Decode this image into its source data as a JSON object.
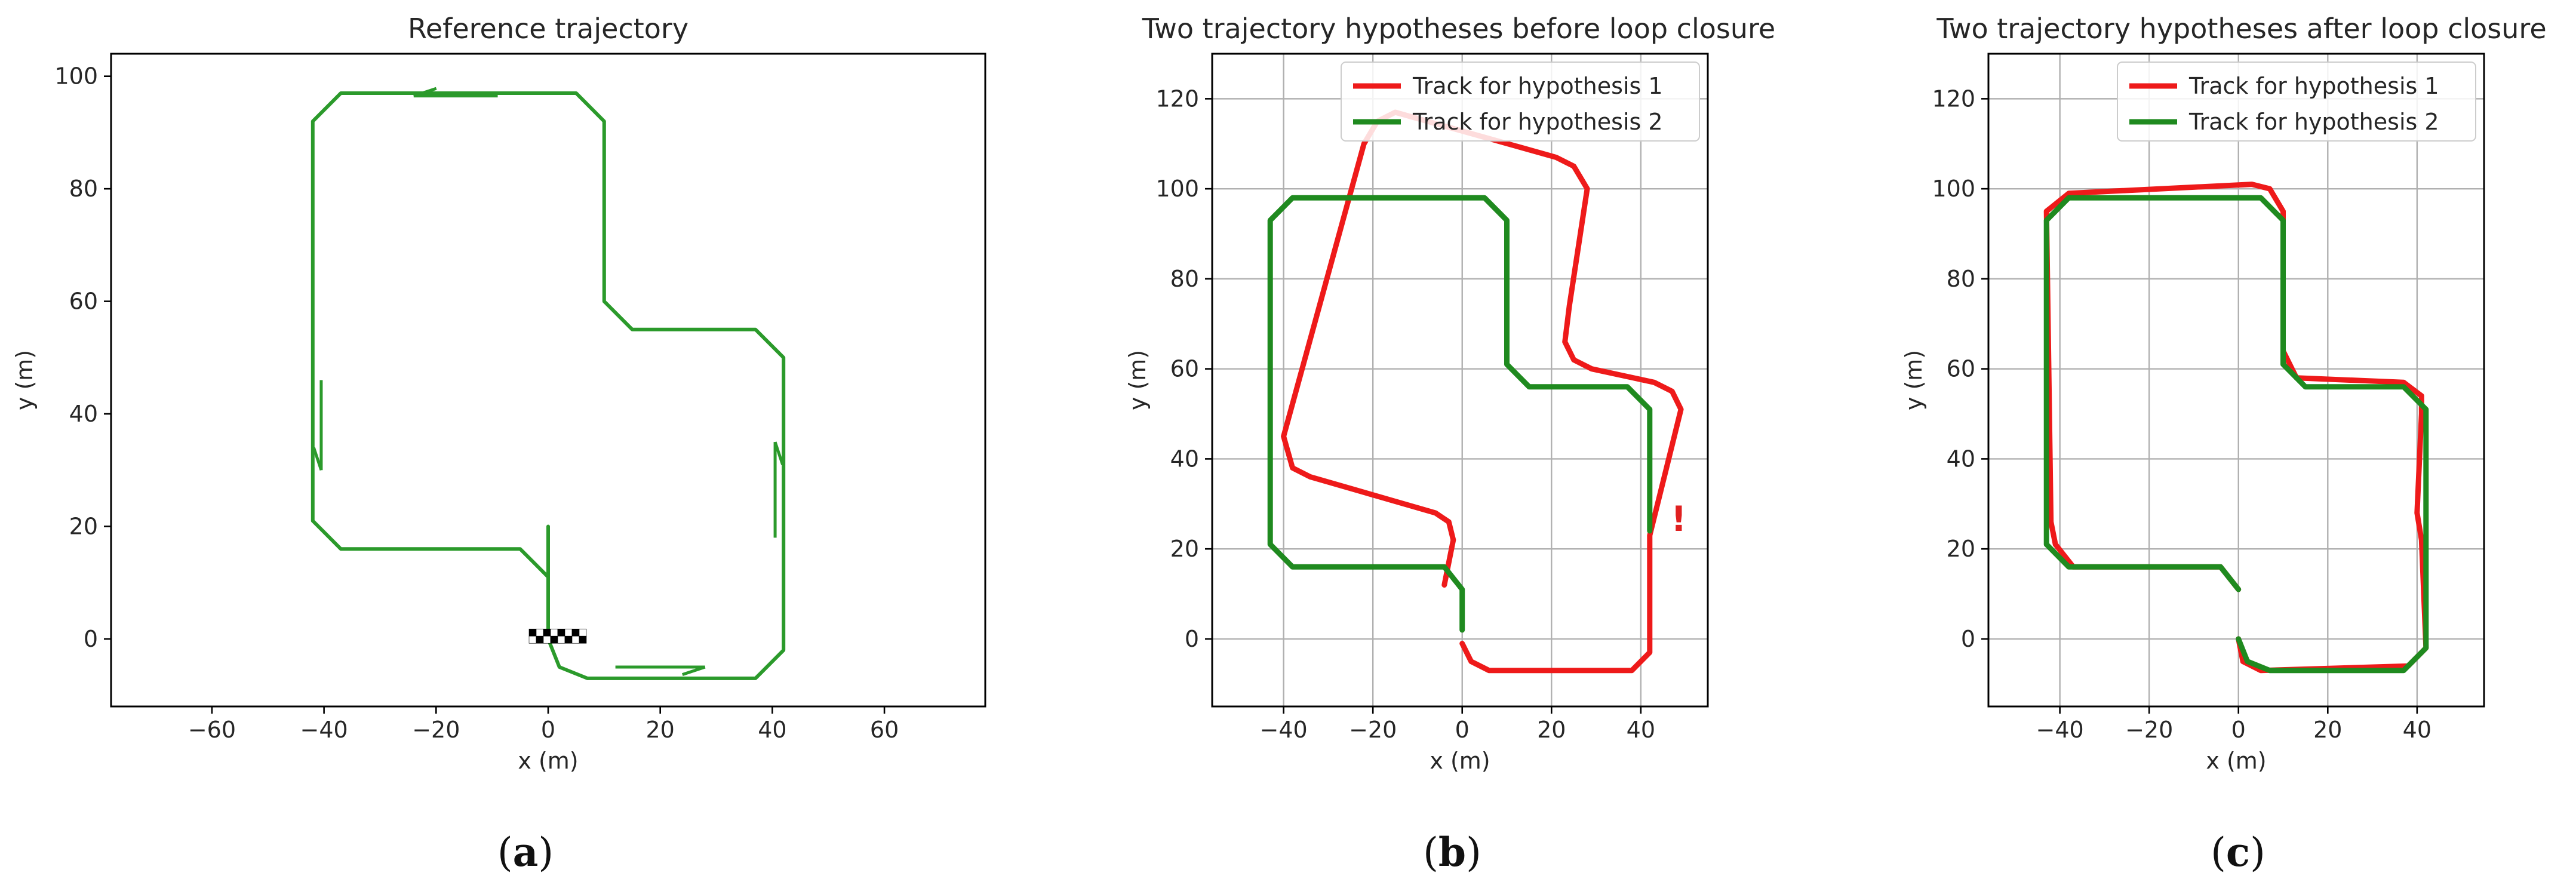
{
  "colors": {
    "red": "#ee1a1a",
    "green": "#1f8a1f",
    "green_ref": "#2b9a2b"
  },
  "chart_data": [
    {
      "type": "line",
      "title": "Reference trajectory",
      "xlabel": "x (m)",
      "ylabel": "y (m)",
      "xlim": [
        -78,
        78
      ],
      "ylim": [
        -12,
        104
      ],
      "xticks": [
        -60,
        -40,
        -20,
        0,
        20,
        40,
        60
      ],
      "yticks": [
        0,
        20,
        40,
        60,
        80,
        100
      ],
      "grid": false,
      "legend": null,
      "series": [
        {
          "name": "",
          "color": "#2b9a2b",
          "points": [
            [
              0,
              20
            ],
            [
              0,
              0
            ],
            [
              2,
              -5
            ],
            [
              7,
              -7
            ],
            [
              37,
              -7
            ],
            [
              42,
              -2
            ],
            [
              42,
              50
            ],
            [
              37,
              55
            ],
            [
              15,
              55
            ],
            [
              10,
              60
            ],
            [
              10,
              92
            ],
            [
              5,
              97
            ],
            [
              -37,
              97
            ],
            [
              -42,
              92
            ],
            [
              -42,
              21
            ],
            [
              -37,
              16
            ],
            [
              -5,
              16
            ],
            [
              0,
              11
            ]
          ]
        }
      ],
      "arrows": [
        [
          [
            -9,
            96.5
          ],
          [
            -24,
            96.5
          ]
        ],
        [
          [
            -40.5,
            46
          ],
          [
            -40.5,
            30
          ]
        ],
        [
          [
            12,
            -5
          ],
          [
            28,
            -5
          ]
        ],
        [
          [
            40.5,
            18
          ],
          [
            40.5,
            35
          ]
        ]
      ],
      "finish_marker": [
        0,
        0.5
      ],
      "caption_label": "a"
    },
    {
      "type": "line",
      "title": "Two trajectory hypotheses before loop closure",
      "xlabel": "x (m)",
      "ylabel": "y (m)",
      "xlim": [
        -56,
        55
      ],
      "ylim": [
        -15,
        130
      ],
      "xticks": [
        -40,
        -20,
        0,
        20,
        40
      ],
      "yticks": [
        0,
        20,
        40,
        60,
        80,
        100,
        120
      ],
      "grid": true,
      "legend": "top-right",
      "annotation": {
        "text": "!",
        "x": 48.5,
        "y": 24
      },
      "series": [
        {
          "name": "Track for hypothesis 1",
          "color": "#ee1a1a",
          "points": [
            [
              0,
              -1
            ],
            [
              2,
              -5
            ],
            [
              6,
              -7
            ],
            [
              38,
              -7
            ],
            [
              42,
              -3
            ],
            [
              42,
              23
            ],
            [
              47,
              43
            ],
            [
              49,
              51
            ],
            [
              47,
              55
            ],
            [
              43,
              57
            ],
            [
              29,
              60
            ],
            [
              25,
              62
            ],
            [
              23,
              66
            ],
            [
              24,
              74
            ],
            [
              28,
              100
            ],
            [
              25,
              105
            ],
            [
              21,
              107
            ],
            [
              -15,
              117
            ],
            [
              -19,
              115
            ],
            [
              -22,
              110
            ],
            [
              -40,
              45
            ],
            [
              -38,
              38
            ],
            [
              -34,
              36
            ],
            [
              -6,
              28
            ],
            [
              -3,
              26
            ],
            [
              -2,
              22
            ],
            [
              -4,
              12
            ]
          ]
        },
        {
          "name": "Track for hypothesis 2",
          "color": "#1f8a1f",
          "points": [
            [
              0,
              2
            ],
            [
              0,
              11
            ],
            [
              -4,
              16
            ],
            [
              -38,
              16
            ],
            [
              -43,
              21
            ],
            [
              -43,
              93
            ],
            [
              -38,
              98
            ],
            [
              5,
              98
            ],
            [
              10,
              93
            ],
            [
              10,
              61
            ],
            [
              15,
              56
            ],
            [
              37,
              56
            ],
            [
              42,
              51
            ],
            [
              42,
              24
            ]
          ]
        }
      ],
      "caption_label": "b"
    },
    {
      "type": "line",
      "title": "Two trajectory hypotheses after loop closure",
      "xlabel": "x (m)",
      "ylabel": "y (m)",
      "xlim": [
        -56,
        55
      ],
      "ylim": [
        -15,
        130
      ],
      "xticks": [
        -40,
        -20,
        0,
        20,
        40
      ],
      "yticks": [
        0,
        20,
        40,
        60,
        80,
        100,
        120
      ],
      "grid": true,
      "legend": "top-right",
      "series": [
        {
          "name": "Track for hypothesis 1",
          "color": "#ee1a1a",
          "points": [
            [
              0,
              11
            ],
            [
              -4,
              16
            ],
            [
              -37,
              16
            ],
            [
              -41,
              21
            ],
            [
              -42,
              26
            ],
            [
              -43,
              95
            ],
            [
              -38,
              99
            ],
            [
              3,
              101
            ],
            [
              7,
              100
            ],
            [
              10,
              95
            ],
            [
              10,
              64
            ],
            [
              13,
              58
            ],
            [
              37,
              57
            ],
            [
              41,
              54
            ],
            [
              41,
              50
            ],
            [
              40,
              28
            ],
            [
              41,
              22
            ],
            [
              42,
              -2
            ],
            [
              38,
              -6
            ],
            [
              5,
              -7
            ],
            [
              1,
              -5
            ],
            [
              0,
              0
            ]
          ]
        },
        {
          "name": "Track for hypothesis 2",
          "color": "#1f8a1f",
          "points": [
            [
              0,
              0
            ],
            [
              2,
              -5
            ],
            [
              7,
              -7
            ],
            [
              37,
              -7
            ],
            [
              42,
              -2
            ],
            [
              42,
              51
            ],
            [
              37,
              56
            ],
            [
              15,
              56
            ],
            [
              10,
              61
            ],
            [
              10,
              93
            ],
            [
              5,
              98
            ],
            [
              -38,
              98
            ],
            [
              -43,
              93
            ],
            [
              -43,
              21
            ],
            [
              -38,
              16
            ],
            [
              -4,
              16
            ],
            [
              0,
              11
            ]
          ]
        }
      ],
      "caption_label": "c"
    }
  ]
}
